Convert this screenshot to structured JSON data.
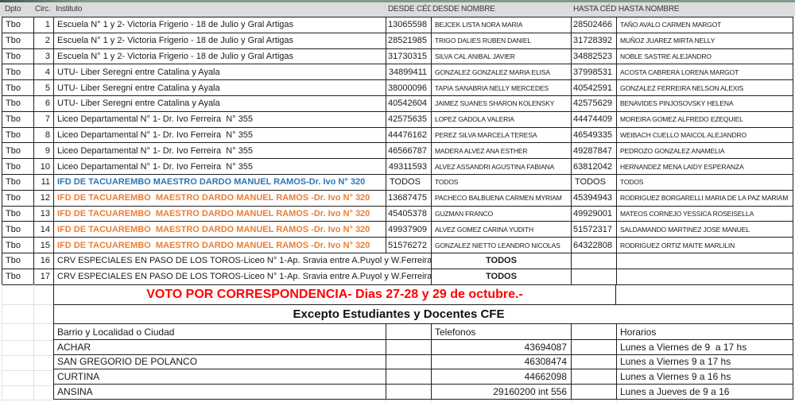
{
  "header": {
    "cols": [
      "Dpto",
      "Circ.",
      "Instituto",
      "DESDE CÉDUL",
      "DESDE NOMBRE",
      "HASTA CÉDUI",
      "HASTA NOMBRE"
    ]
  },
  "table": {
    "rows": [
      {
        "dpto": "Tbo",
        "circ": "1",
        "instituto": "Escuela N° 1 y 2- Victoria Frigerio - 18 de Julio y Gral Artigas",
        "style": "normal",
        "desde_ced": "13065598",
        "desde_nom": "BEJCEK LISTA NORA MARIA",
        "hasta_ced": "28502466",
        "hasta_nom": "TAÑO AVALO CARMEN MARGOT",
        "merged": false
      },
      {
        "dpto": "Tbo",
        "circ": "2",
        "instituto": "Escuela N° 1 y 2- Victoria Frigerio - 18 de Julio y Gral Artigas",
        "style": "normal",
        "desde_ced": "28521985",
        "desde_nom": "TRIGO DALIES RUBEN DANIEL",
        "hasta_ced": "31728392",
        "hasta_nom": "MUÑOZ JUAREZ MIRTA NELLY",
        "merged": false
      },
      {
        "dpto": "Tbo",
        "circ": "3",
        "instituto": "Escuela N° 1 y 2- Victoria Frigerio - 18 de Julio y Gral Artigas",
        "style": "normal",
        "desde_ced": "31730315",
        "desde_nom": "SILVA CAL ANIBAL JAVIER",
        "hasta_ced": "34882523",
        "hasta_nom": "NOBLE SASTRE ALEJANDRO",
        "merged": false
      },
      {
        "dpto": "Tbo",
        "circ": "4",
        "instituto": "UTU- Liber Seregni entre Catalina y Ayala",
        "style": "normal",
        "desde_ced": "34899411",
        "desde_nom": "GONZALEZ GONZALEZ MARIA ELISA",
        "hasta_ced": "37998531",
        "hasta_nom": "ACOSTA CABRERA LORENA MARGOT",
        "merged": false
      },
      {
        "dpto": "Tbo",
        "circ": "5",
        "instituto": "UTU- Liber Seregni entre Catalina y Ayala",
        "style": "normal",
        "desde_ced": "38000096",
        "desde_nom": "TAPIA SANABRIA NELLY MERCEDES",
        "hasta_ced": "40542591",
        "hasta_nom": "GONZALEZ FERREIRA NELSON ALEXIS",
        "merged": false
      },
      {
        "dpto": "Tbo",
        "circ": "6",
        "instituto": "UTU- Liber Seregni entre Catalina y Ayala",
        "style": "normal",
        "desde_ced": "40542604",
        "desde_nom": "JAIMEZ SUANES SHARON KOLENSKY",
        "hasta_ced": "42575629",
        "hasta_nom": "BENAVIDES PINJOSOVSKY HELENA",
        "merged": false
      },
      {
        "dpto": "Tbo",
        "circ": "7",
        "instituto": "Liceo Departamental N° 1- Dr. Ivo Ferreira  N° 355",
        "style": "normal",
        "desde_ced": "42575635",
        "desde_nom": "LOPEZ GADOLA VALERIA",
        "hasta_ced": "44474409",
        "hasta_nom": "MOREIRA GOMEZ ALFREDO EZEQUIEL",
        "merged": false
      },
      {
        "dpto": "Tbo",
        "circ": "8",
        "instituto": "Liceo Departamental N° 1- Dr. Ivo Ferreira  N° 355",
        "style": "normal",
        "desde_ced": "44476162",
        "desde_nom": "PEREZ SILVA MARCELA TERESA",
        "hasta_ced": "46549335",
        "hasta_nom": "WEIBACH CUELLO MAICOL ALEJANDRO",
        "merged": false
      },
      {
        "dpto": "Tbo",
        "circ": "9",
        "instituto": "Liceo Departamental N° 1- Dr. Ivo Ferreira  N° 355",
        "style": "normal",
        "desde_ced": "46566787",
        "desde_nom": "MADERA ALVEZ ANA ESTHER",
        "hasta_ced": "49287847",
        "hasta_nom": "PEDROZO GONZALEZ ANAMELIA",
        "merged": false
      },
      {
        "dpto": "Tbo",
        "circ": "10",
        "instituto": "Liceo Departamental N° 1- Dr. Ivo Ferreira  N° 355",
        "style": "normal",
        "desde_ced": "49311593",
        "desde_nom": "ALVEZ ASSANDRI AGUSTINA FABIANA",
        "hasta_ced": "63812042",
        "hasta_nom": "HERNANDEZ MENA LAIDY ESPERANZA",
        "merged": false
      },
      {
        "dpto": "Tbo",
        "circ": "11",
        "instituto": "IFD DE TACUAREMBO MAESTRO DARDO MANUEL RAMOS-Dr. Ivo N° 320",
        "style": "blue",
        "desde_ced": "TODOS",
        "desde_nom": "TODOS",
        "hasta_ced": "TODOS",
        "hasta_nom": "TODOS",
        "merged": false
      },
      {
        "dpto": "Tbo",
        "circ": "12",
        "instituto": "IFD DE TACUAREMBO  MAESTRO DARDO MANUEL RAMOS -Dr. Ivo N° 320",
        "style": "orange",
        "desde_ced": "13687475",
        "desde_nom": "PACHECO BALBUENA CARMEN MYRIAM",
        "hasta_ced": "45394943",
        "hasta_nom": "RODRIGUEZ BORGARELLI MARIA DE LA PAZ MARIAM",
        "merged": false
      },
      {
        "dpto": "Tbo",
        "circ": "13",
        "instituto": "IFD DE TACUAREMBO  MAESTRO DARDO MANUEL RAMOS -Dr. Ivo N° 320",
        "style": "orange",
        "desde_ced": "45405378",
        "desde_nom": "GUZMAN FRANCO",
        "hasta_ced": "49929001",
        "hasta_nom": "MATEOS CORNEJO YESSICA ROSEISELLA",
        "merged": false
      },
      {
        "dpto": "Tbo",
        "circ": "14",
        "instituto": "IFD DE TACUAREMBO  MAESTRO DARDO MANUEL RAMOS -Dr. Ivo N° 320",
        "style": "orange",
        "desde_ced": "49937909",
        "desde_nom": "ALVEZ GOMEZ CARINA YUDITH",
        "hasta_ced": "51572317",
        "hasta_nom": "SALDAMANDO MARTINEZ JOSE MANUEL",
        "merged": false
      },
      {
        "dpto": "Tbo",
        "circ": "15",
        "instituto": "IFD DE TACUAREMBO  MAESTRO DARDO MANUEL RAMOS -Dr. Ivo N° 320",
        "style": "orange",
        "desde_ced": "51576272",
        "desde_nom": "GONZALEZ NIETTO LEANDRO NICOLAS",
        "hasta_ced": "64322808",
        "hasta_nom": "RODRIGUEZ ORTIZ MAITE MARLILIN",
        "merged": false
      },
      {
        "dpto": "Tbo",
        "circ": "16",
        "instituto": "CRV ESPECIALES EN PASO DE LOS TOROS-Liceo N° 1-Ap. Sravia entre A.Puyol y W.Ferreira",
        "style": "normal",
        "desde_ced": "",
        "desde_nom": "TODOS",
        "hasta_ced": "",
        "hasta_nom": "",
        "merged": true
      },
      {
        "dpto": "Tbo",
        "circ": "17",
        "instituto": "CRV ESPECIALES EN PASO DE LOS TOROS-Liceo N° 1-Ap. Sravia entre A.Puyol y W.Ferreira",
        "style": "normal",
        "desde_ced": "",
        "desde_nom": "TODOS",
        "hasta_ced": "",
        "hasta_nom": "",
        "merged": true
      }
    ]
  },
  "notice": {
    "voto_label": "VOTO POR CORRESPONDENCIA- Dias 27-28 y 29 de octubre.-",
    "excepto_label": "Excepto Estudiantes y Docentes CFE"
  },
  "bottom": {
    "headers": {
      "barrio": "Barrio y Localidad o Ciudad",
      "telefonos": "Telefonos",
      "horarios": "Horarios"
    },
    "rows": [
      {
        "barrio": "ACHAR",
        "telefono": "43694087",
        "horario": "Lunes a Viernes de 9  a 17 hs"
      },
      {
        "barrio": "SAN GREGORIO DE POLANCO",
        "telefono": "46308474",
        "horario": "Lunes a Viernes 9 a 17 hs"
      },
      {
        "barrio": "CURTINA",
        "telefono": "44662098",
        "horario": "Lunes a Viernes 9 a 16 hs"
      },
      {
        "barrio": "ANSINA",
        "telefono": "29160200 int 556",
        "horario": "Lunes a Jueves de 9 a 16"
      }
    ]
  },
  "colors": {
    "accent_blue": "#2e75b6",
    "accent_orange": "#ed7d31",
    "notice_red": "#ff0000",
    "header_bg": "#dcdcdc",
    "top_strip_green": "#7e9c86",
    "border": "#1f1f1f"
  }
}
